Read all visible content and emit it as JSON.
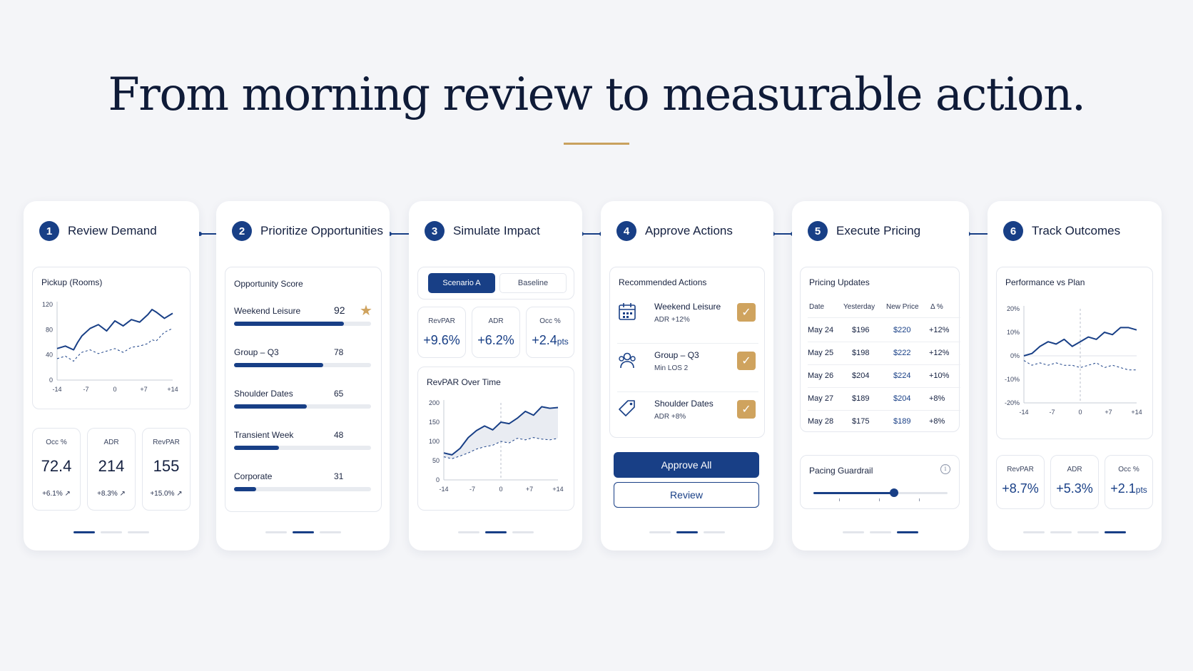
{
  "headline": "From morning review to measurable action.",
  "colors": {
    "primary": "#183f86",
    "accent": "#c9a15e",
    "background": "#f4f5f8"
  },
  "steps": [
    {
      "number": "1",
      "title": "Review Demand",
      "panel_title": "Pickup (Rooms)",
      "chart_data": {
        "type": "line",
        "x": [
          -14,
          -12,
          -10,
          -9,
          -8,
          -6,
          -4,
          -2,
          0,
          2,
          4,
          6,
          8,
          9,
          10,
          12,
          14
        ],
        "xticks": [
          "-14",
          "-7",
          "0",
          "+7",
          "+14"
        ],
        "yticks": [
          "0",
          "40",
          "80",
          "120"
        ],
        "ylim": [
          0,
          120
        ],
        "series": [
          {
            "style": "solid",
            "values": [
              50,
              54,
              48,
              60,
              70,
              82,
              88,
              78,
              94,
              86,
              96,
              92,
              104,
              112,
              108,
              98,
              106
            ]
          },
          {
            "style": "dashed",
            "values": [
              34,
              38,
              30,
              38,
              44,
              48,
              42,
              46,
              50,
              44,
              52,
              54,
              58,
              64,
              62,
              76,
              82
            ]
          }
        ]
      },
      "stats": [
        {
          "label": "Occ %",
          "value": "72.4",
          "delta": "+6.1%"
        },
        {
          "label": "ADR",
          "value": "214",
          "delta": "+8.3%"
        },
        {
          "label": "RevPAR",
          "value": "155",
          "delta": "+15.0%"
        }
      ],
      "active_dot": 0,
      "dot_count": 3
    },
    {
      "number": "2",
      "title": "Prioritize Opportunities",
      "panel_title": "Opportunity Score",
      "opportunities": [
        {
          "name": "Weekend Leisure",
          "score": "92",
          "fraction": 0.8
        },
        {
          "name": "Group – Q3",
          "score": "78",
          "fraction": 0.65
        },
        {
          "name": "Shoulder Dates",
          "score": "65",
          "fraction": 0.53
        },
        {
          "name": "Transient Week",
          "score": "48",
          "fraction": 0.33
        },
        {
          "name": "Corporate",
          "score": "31",
          "fraction": 0.16
        }
      ],
      "star_icon": "star-icon",
      "active_dot": 1,
      "dot_count": 3
    },
    {
      "number": "3",
      "title": "Simulate Impact",
      "scenario_tabs": [
        "Scenario A",
        "Baseline"
      ],
      "active_tab": 0,
      "metrics": [
        {
          "label": "RevPAR",
          "value": "+9.6%"
        },
        {
          "label": "ADR",
          "value": "+6.2%"
        },
        {
          "label": "Occ %",
          "value": "+2.4",
          "unit": "pts"
        }
      ],
      "panel_title": "RevPAR Over Time",
      "chart_data": {
        "type": "area",
        "x": [
          -14,
          -12,
          -10,
          -8,
          -6,
          -4,
          -2,
          0,
          2,
          4,
          6,
          8,
          10,
          12,
          14
        ],
        "xticks": [
          "-14",
          "-7",
          "0",
          "+7",
          "+14"
        ],
        "yticks": [
          "0",
          "50",
          "100",
          "150",
          "200"
        ],
        "ylim": [
          0,
          200
        ],
        "series": [
          {
            "style": "solid",
            "values": [
              70,
              65,
              82,
              110,
              128,
              140,
              130,
              150,
              146,
              160,
              178,
              168,
              190,
              186,
              188
            ]
          },
          {
            "style": "dashed",
            "values": [
              60,
              55,
              62,
              70,
              80,
              86,
              90,
              100,
              96,
              108,
              104,
              110,
              106,
              104,
              108
            ]
          }
        ]
      },
      "active_dot": 1,
      "dot_count": 3
    },
    {
      "number": "4",
      "title": "Approve Actions",
      "panel_title": "Recommended Actions",
      "actions": [
        {
          "name": "Weekend Leisure",
          "detail": "ADR +12%",
          "icon": "calendar-icon"
        },
        {
          "name": "Group – Q3",
          "detail": "Min LOS 2",
          "icon": "group-icon"
        },
        {
          "name": "Shoulder Dates",
          "detail": "ADR +8%",
          "icon": "tag-icon"
        }
      ],
      "check_icon": "check-icon",
      "approve_label": "Approve All",
      "review_label": "Review",
      "active_dot": 1,
      "dot_count": 3
    },
    {
      "number": "5",
      "title": "Execute Pricing",
      "panel_title": "Pricing Updates",
      "table_headers": [
        "Date",
        "Yesterday",
        "New Price",
        "Δ %"
      ],
      "rows": [
        [
          "May 24",
          "$196",
          "$220",
          "+12%"
        ],
        [
          "May 25",
          "$198",
          "$222",
          "+12%"
        ],
        [
          "May 26",
          "$204",
          "$224",
          "+10%"
        ],
        [
          "May 27",
          "$189",
          "$204",
          "+8%"
        ],
        [
          "May 28",
          "$175",
          "$189",
          "+8%"
        ]
      ],
      "guardrail_label": "Pacing Guardrail",
      "info_icon": "info-icon",
      "guardrail_level": 0.6,
      "active_dot": 2,
      "dot_count": 3
    },
    {
      "number": "6",
      "title": "Track Outcomes",
      "panel_title": "Performance vs Plan",
      "chart_data": {
        "type": "line",
        "x": [
          -14,
          -12,
          -10,
          -8,
          -6,
          -4,
          -2,
          0,
          2,
          4,
          6,
          8,
          10,
          12,
          14
        ],
        "xticks": [
          "-14",
          "-7",
          "0",
          "+7",
          "+14"
        ],
        "yticks": [
          "20%",
          "10%",
          "0%",
          "-10%",
          "-20%"
        ],
        "ylim": [
          -20,
          20
        ],
        "series": [
          {
            "style": "solid",
            "values": [
              0,
              1,
              4,
              6,
              5,
              7,
              4,
              6,
              8,
              7,
              10,
              9,
              12,
              12,
              11
            ]
          },
          {
            "style": "dashed",
            "values": [
              -2,
              -4,
              -3,
              -4,
              -3,
              -4,
              -4,
              -5,
              -4,
              -3,
              -5,
              -4,
              -5,
              -6,
              -6
            ]
          }
        ]
      },
      "stats": [
        {
          "label": "RevPAR",
          "value": "+8.7%"
        },
        {
          "label": "ADR",
          "value": "+5.3%"
        },
        {
          "label": "Occ %",
          "value": "+2.1",
          "unit": "pts"
        }
      ],
      "active_dot": 3,
      "dot_count": 4
    }
  ]
}
